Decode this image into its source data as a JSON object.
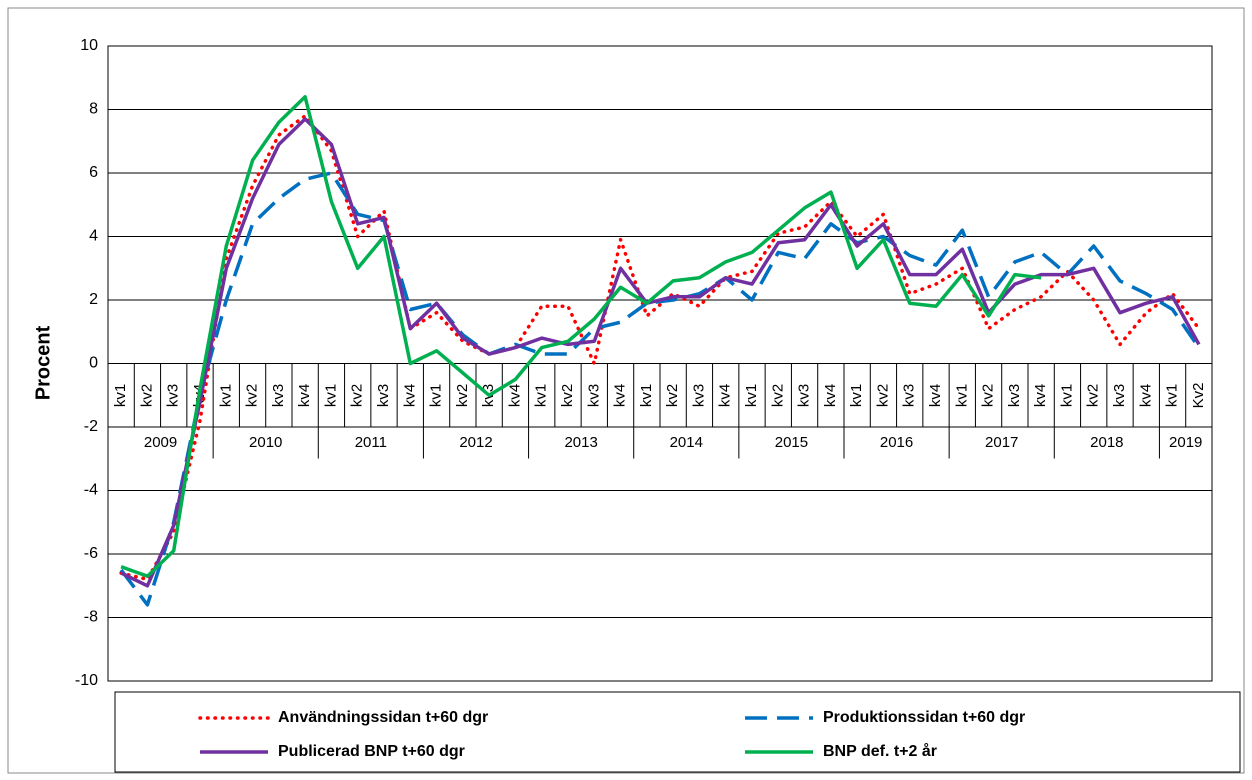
{
  "chart_data": {
    "type": "line",
    "y_label": "Procent",
    "categories": [
      "kv1",
      "kv2",
      "kv3",
      "kv4",
      "kv1",
      "kv2",
      "kv3",
      "kv4",
      "kv1",
      "kv2",
      "kv3",
      "kv4",
      "kv1",
      "kv2",
      "kv3",
      "kv4",
      "kv1",
      "kv2",
      "kv3",
      "kv4",
      "kv1",
      "kv2",
      "kv3",
      "kv4",
      "kv1",
      "kv2",
      "kv3",
      "kv4",
      "kv1",
      "kv2",
      "kv3",
      "kv4",
      "kv1",
      "kv2",
      "kv3",
      "kv4",
      "kv1",
      "kv2",
      "kv3",
      "kv4",
      "kv1",
      "Kv2"
    ],
    "years": [
      "2009",
      "2010",
      "2011",
      "2012",
      "2013",
      "2014",
      "2015",
      "2016",
      "2017",
      "2018",
      "2019"
    ],
    "ylim": [
      -10,
      10
    ],
    "yticks": [
      -10,
      -8,
      -6,
      -4,
      -2,
      0,
      2,
      4,
      6,
      8,
      10
    ],
    "grid": true,
    "series": [
      {
        "name": "Användningssidan t+60 dgr",
        "color": "#ff0000",
        "style": "dotted",
        "values": [
          -6.6,
          -6.8,
          -5.3,
          -1.8,
          3.3,
          5.6,
          7.2,
          7.8,
          6.7,
          4.0,
          4.8,
          1.1,
          1.6,
          0.7,
          0.3,
          0.5,
          1.8,
          1.8,
          0.0,
          3.9,
          1.5,
          2.2,
          1.8,
          2.7,
          2.9,
          4.1,
          4.3,
          5.1,
          4.0,
          4.7,
          2.2,
          2.5,
          3.0,
          1.1,
          1.7,
          2.1,
          2.9,
          2.0,
          0.6,
          1.6,
          2.2,
          1.1
        ]
      },
      {
        "name": "Produktionssidan t+60 dgr",
        "color": "#0070c0",
        "style": "dashed",
        "values": [
          -6.5,
          -7.6,
          -5.0,
          -1.0,
          2.0,
          4.4,
          5.2,
          5.8,
          6.0,
          4.7,
          4.5,
          1.7,
          1.9,
          0.9,
          0.3,
          0.6,
          0.3,
          0.3,
          1.1,
          1.3,
          1.9,
          2.0,
          2.2,
          2.7,
          2.0,
          3.5,
          3.3,
          4.4,
          3.8,
          4.0,
          3.4,
          3.1,
          4.2,
          2.1,
          3.2,
          3.5,
          2.8,
          3.7,
          2.6,
          2.2,
          1.7,
          0.5
        ]
      },
      {
        "name": "Publicerad BNP t+60 dgr",
        "color": "#7030a0",
        "style": "solid",
        "values": [
          -6.6,
          -7.0,
          -5.1,
          -1.2,
          3.0,
          5.2,
          6.9,
          7.7,
          6.9,
          4.4,
          4.6,
          1.1,
          1.9,
          0.8,
          0.3,
          0.5,
          0.8,
          0.6,
          0.7,
          3.0,
          1.9,
          2.1,
          2.1,
          2.7,
          2.5,
          3.8,
          3.9,
          5.0,
          3.7,
          4.4,
          2.8,
          2.8,
          3.6,
          1.6,
          2.5,
          2.8,
          2.8,
          3.0,
          1.6,
          1.9,
          2.1,
          0.6
        ]
      },
      {
        "name": "BNP def. t+2 år",
        "color": "#00b050",
        "style": "solid",
        "values": [
          -6.4,
          -6.7,
          -5.9,
          -0.8,
          3.7,
          6.4,
          7.6,
          8.4,
          5.1,
          3.0,
          4.0,
          0.0,
          0.4,
          -0.3,
          -1.0,
          -0.5,
          0.5,
          0.7,
          1.4,
          2.4,
          1.9,
          2.6,
          2.7,
          3.2,
          3.5,
          4.2,
          4.9,
          5.4,
          3.0,
          3.9,
          1.9,
          1.8,
          2.8,
          1.5,
          2.8,
          2.7,
          null,
          null,
          null,
          null,
          null,
          null
        ]
      }
    ]
  }
}
